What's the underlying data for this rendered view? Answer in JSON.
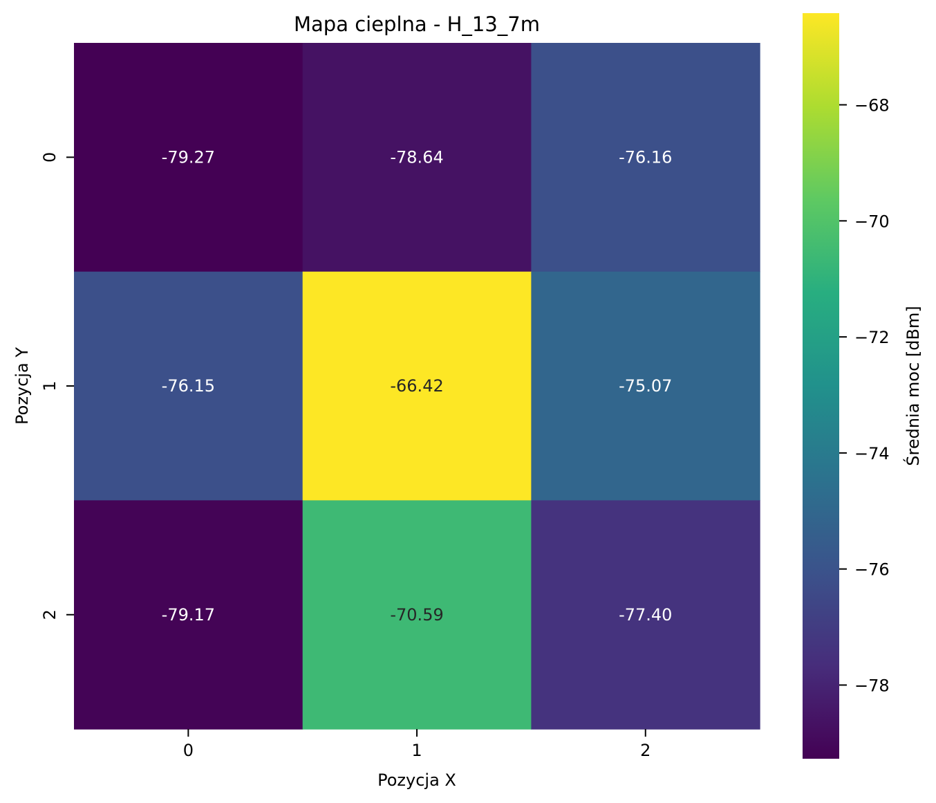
{
  "chart_data": {
    "type": "heatmap",
    "title": "Mapa cieplna - H_13_7m",
    "xlabel": "Pozycja X",
    "ylabel": "Pozycja Y",
    "x_categories": [
      "0",
      "1",
      "2"
    ],
    "y_categories": [
      "0",
      "1",
      "2"
    ],
    "values": [
      [
        -79.27,
        -78.64,
        -76.16
      ],
      [
        -76.15,
        -66.42,
        -75.07
      ],
      [
        -79.17,
        -70.59,
        -77.4
      ]
    ],
    "cell_labels": [
      [
        "-79.27",
        "-78.64",
        "-76.16"
      ],
      [
        "-76.15",
        "-66.42",
        "-75.07"
      ],
      [
        "-79.17",
        "-70.59",
        "-77.40"
      ]
    ],
    "colormap": "viridis",
    "colorbar": {
      "label": "Średnia moc [dBm]",
      "min": -79.27,
      "max": -66.42,
      "ticks": [
        -78,
        -76,
        -74,
        -72,
        -70,
        -68
      ],
      "tick_labels": [
        "−78",
        "−76",
        "−74",
        "−72",
        "−70",
        "−68"
      ]
    },
    "legend": "colorbar-right",
    "grid": false
  }
}
